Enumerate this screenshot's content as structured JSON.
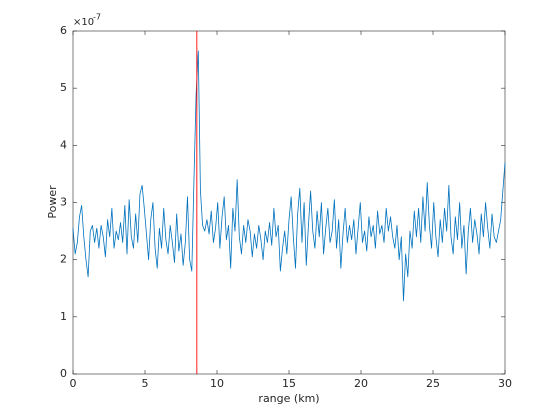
{
  "chart_data": {
    "type": "line",
    "x_label": "range (km)",
    "y_label": "Power",
    "y_exponent_base": "×10",
    "y_exponent": "-7",
    "xlim": [
      0,
      30
    ],
    "xticks": [
      0,
      5,
      10,
      15,
      20,
      25,
      30
    ],
    "ylim": [
      0,
      6
    ],
    "yticks": [
      0,
      1,
      2,
      3,
      4,
      5,
      6
    ],
    "x": [
      0,
      0.15,
      0.3,
      0.45,
      0.6,
      0.75,
      0.9,
      1.05,
      1.2,
      1.35,
      1.5,
      1.65,
      1.8,
      1.95,
      2.1,
      2.25,
      2.4,
      2.55,
      2.7,
      2.85,
      3,
      3.15,
      3.3,
      3.45,
      3.6,
      3.75,
      3.9,
      4.05,
      4.2,
      4.35,
      4.5,
      4.65,
      4.8,
      4.95,
      5.1,
      5.25,
      5.4,
      5.55,
      5.7,
      5.85,
      6,
      6.15,
      6.3,
      6.45,
      6.6,
      6.75,
      6.9,
      7.05,
      7.2,
      7.35,
      7.5,
      7.65,
      7.8,
      7.95,
      8.1,
      8.25,
      8.4,
      8.55,
      8.7,
      8.85,
      9,
      9.15,
      9.3,
      9.45,
      9.6,
      9.75,
      9.9,
      10.05,
      10.2,
      10.35,
      10.5,
      10.65,
      10.8,
      10.95,
      11.1,
      11.25,
      11.4,
      11.55,
      11.7,
      11.85,
      12,
      12.15,
      12.3,
      12.45,
      12.6,
      12.75,
      12.9,
      13.05,
      13.2,
      13.35,
      13.5,
      13.65,
      13.8,
      13.95,
      14.1,
      14.25,
      14.4,
      14.55,
      14.7,
      14.85,
      15,
      15.15,
      15.3,
      15.45,
      15.6,
      15.75,
      15.9,
      16.05,
      16.2,
      16.35,
      16.5,
      16.65,
      16.8,
      16.95,
      17.1,
      17.25,
      17.4,
      17.55,
      17.7,
      17.85,
      18,
      18.15,
      18.3,
      18.45,
      18.6,
      18.75,
      18.9,
      19.05,
      19.2,
      19.35,
      19.5,
      19.65,
      19.8,
      19.95,
      20.1,
      20.25,
      20.4,
      20.55,
      20.7,
      20.85,
      21,
      21.15,
      21.3,
      21.45,
      21.6,
      21.75,
      21.9,
      22.05,
      22.2,
      22.35,
      22.5,
      22.65,
      22.8,
      22.95,
      23.1,
      23.25,
      23.4,
      23.55,
      23.7,
      23.85,
      24,
      24.15,
      24.3,
      24.45,
      24.6,
      24.75,
      24.9,
      25.05,
      25.2,
      25.35,
      25.5,
      25.65,
      25.8,
      25.95,
      26.1,
      26.25,
      26.4,
      26.55,
      26.7,
      26.85,
      27,
      27.15,
      27.3,
      27.45,
      27.6,
      27.75,
      27.9,
      28.05,
      28.2,
      28.35,
      28.5,
      28.65,
      28.8,
      28.95,
      29.1,
      29.25,
      29.4,
      29.55,
      29.7,
      29.85,
      30
    ],
    "series": [
      {
        "color": "#0072bd",
        "values": [
          2.55,
          2.1,
          2.3,
          2.75,
          2.95,
          2.4,
          2.0,
          1.7,
          2.5,
          2.6,
          2.3,
          2.55,
          2.2,
          2.6,
          2.4,
          2.05,
          2.7,
          2.4,
          2.9,
          2.2,
          2.5,
          2.35,
          2.65,
          2.3,
          2.95,
          2.1,
          3.05,
          2.4,
          2.2,
          2.8,
          2.3,
          3.15,
          3.3,
          2.9,
          2.45,
          2.0,
          2.7,
          3.0,
          2.2,
          1.85,
          2.55,
          2.2,
          2.9,
          2.35,
          2.1,
          2.6,
          2.3,
          1.95,
          2.8,
          2.15,
          2.45,
          1.9,
          2.3,
          3.1,
          2.0,
          1.8,
          3.4,
          4.9,
          5.65,
          3.2,
          2.6,
          2.5,
          2.7,
          2.45,
          2.85,
          2.3,
          2.55,
          3.0,
          2.2,
          2.75,
          3.1,
          2.35,
          2.6,
          1.85,
          2.9,
          2.5,
          3.4,
          2.4,
          2.1,
          2.6,
          2.3,
          2.7,
          2.5,
          2.05,
          2.45,
          2.2,
          2.6,
          2.35,
          2.0,
          2.5,
          2.3,
          2.65,
          2.25,
          2.9,
          2.4,
          2.6,
          1.8,
          2.2,
          2.5,
          2.1,
          2.7,
          3.1,
          2.4,
          1.85,
          2.8,
          3.25,
          2.3,
          3.0,
          1.9,
          2.6,
          3.2,
          2.5,
          2.2,
          2.85,
          2.4,
          3.0,
          2.1,
          2.55,
          2.9,
          2.3,
          2.5,
          3.05,
          2.2,
          2.7,
          1.85,
          2.45,
          2.9,
          2.3,
          2.6,
          2.35,
          2.7,
          2.1,
          2.55,
          3.0,
          2.3,
          2.5,
          2.15,
          2.75,
          2.4,
          2.6,
          2.2,
          2.85,
          2.45,
          2.6,
          2.3,
          2.9,
          2.5,
          2.75,
          2.4,
          2.2,
          2.6,
          2.0,
          2.4,
          1.28,
          2.1,
          1.7,
          2.5,
          2.2,
          2.85,
          2.4,
          2.9,
          2.3,
          3.1,
          2.5,
          3.35,
          2.6,
          2.2,
          3.0,
          2.4,
          2.05,
          2.7,
          2.3,
          2.9,
          2.5,
          3.3,
          2.4,
          2.1,
          2.75,
          2.35,
          3.0,
          2.2,
          2.6,
          1.75,
          2.5,
          2.9,
          2.3,
          2.7,
          2.45,
          2.1,
          2.8,
          2.4,
          3.0,
          2.55,
          2.2,
          2.8,
          2.4,
          2.3,
          2.5,
          2.7,
          3.2,
          3.7
        ]
      }
    ],
    "vline": {
      "x": 8.6,
      "color": "#ff0000"
    }
  }
}
